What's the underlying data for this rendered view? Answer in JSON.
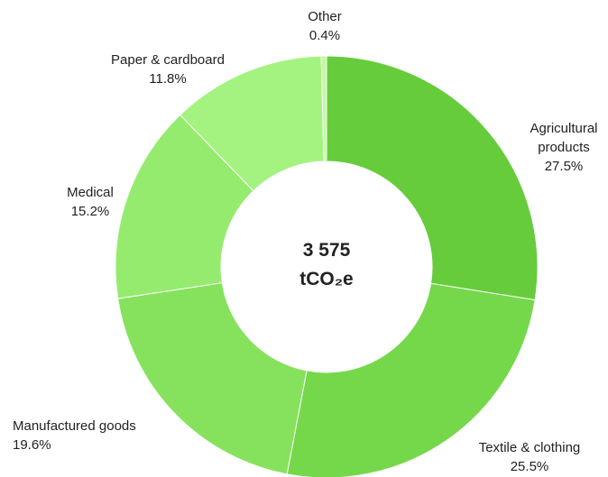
{
  "chart_data": {
    "type": "pie",
    "title": "",
    "center_value": "3 575",
    "center_unit": "tCO₂e",
    "slices": [
      {
        "label": "Agricultural products",
        "label_lines": [
          "Agricultural",
          "products"
        ],
        "value": 27.5,
        "value_label": "27.5%",
        "color": "#66cc3c"
      },
      {
        "label": "Textile & clothing",
        "label_lines": [
          "Textile & clothing"
        ],
        "value": 25.5,
        "value_label": "25.5%",
        "color": "#75d84b"
      },
      {
        "label": "Manufactured goods",
        "label_lines": [
          "Manufactured goods"
        ],
        "value": 19.6,
        "value_label": "19.6%",
        "color": "#86e25c"
      },
      {
        "label": "Medical",
        "label_lines": [
          "Medical"
        ],
        "value": 15.2,
        "value_label": "15.2%",
        "color": "#95eb6d"
      },
      {
        "label": "Paper & cardboard",
        "label_lines": [
          "Paper & cardboard"
        ],
        "value": 11.8,
        "value_label": "11.8%",
        "color": "#a4f27f"
      },
      {
        "label": "Other",
        "label_lines": [
          "Other"
        ],
        "value": 0.4,
        "value_label": "0.4%",
        "color": "#c5f7a6"
      }
    ]
  }
}
